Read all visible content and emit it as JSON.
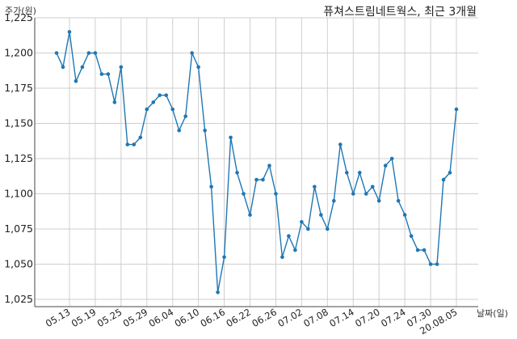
{
  "chart_data": {
    "type": "line",
    "title": "퓨쳐스트림네트웍스, 최근 3개월",
    "ylabel": "주가(원)",
    "xlabel": "날짜(일)",
    "ylim": [
      1025,
      1225
    ],
    "yticks": [
      1025,
      1050,
      1075,
      1100,
      1125,
      1150,
      1175,
      1200,
      1225
    ],
    "ytick_labels": [
      "1,025",
      "1,050",
      "1,075",
      "1,100",
      "1,125",
      "1,150",
      "1,175",
      "1,200",
      "1,225"
    ],
    "xtick_labels": [
      "05.13",
      "05.19",
      "05.25",
      "05.29",
      "06.04",
      "06.10",
      "06.16",
      "06.22",
      "06.26",
      "07.02",
      "07.08",
      "07.14",
      "07.20",
      "07.24",
      "07.30",
      "20.08.05"
    ],
    "xtick_index": [
      2,
      6,
      10,
      14,
      18,
      22,
      26,
      30,
      34,
      38,
      42,
      46,
      50,
      54,
      58,
      62
    ],
    "grid": true,
    "line_color": "#1f77b4",
    "series": [
      {
        "values": [
          1200,
          1190,
          1215,
          1180,
          1190,
          1200,
          1200,
          1185,
          1185,
          1165,
          1190,
          1135,
          1135,
          1140,
          1160,
          1165,
          1170,
          1170,
          1160,
          1145,
          1155,
          1200,
          1190,
          1145,
          1105,
          1030,
          1055,
          1140,
          1115,
          1100,
          1085,
          1110,
          1110,
          1120,
          1100,
          1055,
          1070,
          1060,
          1080,
          1075,
          1105,
          1085,
          1075,
          1095,
          1135,
          1115,
          1100,
          1115,
          1100,
          1105,
          1095,
          1120,
          1125,
          1095,
          1085,
          1070,
          1060,
          1060,
          1050,
          1050,
          1110,
          1115,
          1160
        ]
      }
    ]
  }
}
